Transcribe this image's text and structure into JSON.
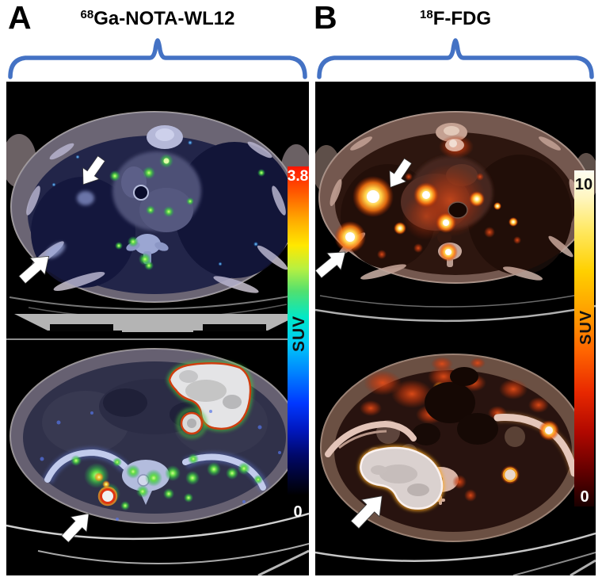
{
  "figure": {
    "panel_a": {
      "label": "A",
      "title": {
        "isotope": "68",
        "compound": "Ga-NOTA-WL12"
      },
      "colorbar": {
        "max": "3.8",
        "min": "0",
        "unit": "SUV",
        "gradient_stops": [
          {
            "c": "#ff1500",
            "p": 0
          },
          {
            "c": "#ff5a00",
            "p": 8
          },
          {
            "c": "#ffa800",
            "p": 16
          },
          {
            "c": "#ffe800",
            "p": 24
          },
          {
            "c": "#b8f040",
            "p": 31
          },
          {
            "c": "#50e070",
            "p": 38
          },
          {
            "c": "#00e8c8",
            "p": 46
          },
          {
            "c": "#00c8f8",
            "p": 54
          },
          {
            "c": "#0080ff",
            "p": 63
          },
          {
            "c": "#0038ff",
            "p": 72
          },
          {
            "c": "#0018c0",
            "p": 80
          },
          {
            "c": "#000868",
            "p": 88
          },
          {
            "c": "#000000",
            "p": 100
          }
        ]
      }
    },
    "panel_b": {
      "label": "B",
      "title": {
        "isotope": "18",
        "compound": "F-FDG"
      },
      "colorbar": {
        "max": "10",
        "min": "0",
        "unit": "SUV",
        "gradient_stops": [
          {
            "c": "#fffdf2",
            "p": 0
          },
          {
            "c": "#fff6c0",
            "p": 8
          },
          {
            "c": "#ffe860",
            "p": 18
          },
          {
            "c": "#ffd000",
            "p": 30
          },
          {
            "c": "#ffa000",
            "p": 42
          },
          {
            "c": "#ff6400",
            "p": 54
          },
          {
            "c": "#e82800",
            "p": 66
          },
          {
            "c": "#b00800",
            "p": 78
          },
          {
            "c": "#600000",
            "p": 90
          },
          {
            "c": "#1a0000",
            "p": 100
          }
        ]
      }
    },
    "colors": {
      "brace": "#4472c4",
      "arrow": "#ffffff",
      "page_background": "#ffffff",
      "scan_background": "#000000"
    }
  }
}
